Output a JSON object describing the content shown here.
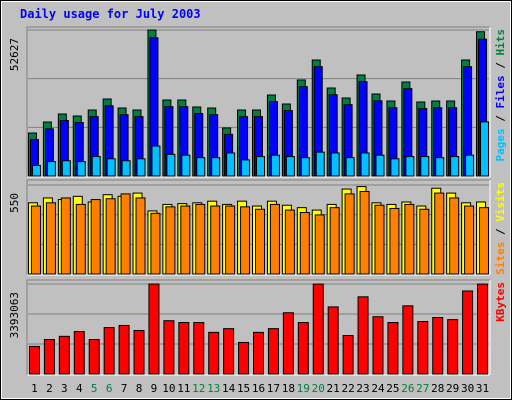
{
  "title": "Daily usage for July 2003",
  "categories": [
    "1",
    "2",
    "3",
    "4",
    "5",
    "6",
    "7",
    "8",
    "9",
    "10",
    "11",
    "12",
    "13",
    "14",
    "15",
    "16",
    "17",
    "18",
    "19",
    "20",
    "21",
    "22",
    "23",
    "24",
    "25",
    "26",
    "27",
    "28",
    "29",
    "30",
    "31"
  ],
  "category_colors": [
    "#000000",
    "#000000",
    "#000000",
    "#000000",
    "#008040",
    "#008040",
    "#000000",
    "#000000",
    "#000000",
    "#000000",
    "#000000",
    "#008040",
    "#008040",
    "#000000",
    "#000000",
    "#000000",
    "#000000",
    "#000000",
    "#008040",
    "#008040",
    "#000000",
    "#000000",
    "#000000",
    "#000000",
    "#000000",
    "#008040",
    "#008040",
    "#000000",
    "#000000",
    "#000000",
    "#000000"
  ],
  "chart_data": [
    {
      "type": "bar",
      "ylim": [
        0,
        52627
      ],
      "yticks": [
        52627
      ],
      "series": [
        {
          "name": "Hits",
          "color": "#008040",
          "values": [
            15500,
            19465,
            22349,
            21628,
            23790,
            27755,
            24511,
            23790,
            52627,
            27395,
            27395,
            24872,
            24511,
            17302,
            23790,
            23790,
            29197,
            25953,
            34604,
            41813,
            31720,
            28116,
            36406,
            29557,
            27034,
            33883,
            26674,
            27034,
            27034,
            41813,
            52000
          ]
        },
        {
          "name": "Files",
          "color": "#0000ff",
          "values": [
            13100,
            17000,
            20000,
            19300,
            21400,
            25300,
            22100,
            21400,
            49800,
            25000,
            25000,
            22500,
            22100,
            15000,
            21400,
            21400,
            26800,
            23600,
            32200,
            39400,
            29300,
            25700,
            34000,
            27100,
            24600,
            31500,
            24300,
            24600,
            24600,
            39400,
            49300
          ]
        },
        {
          "name": "Pages",
          "color": "#00c0ff",
          "values": [
            3800,
            5200,
            5500,
            5200,
            7000,
            6200,
            5500,
            6200,
            10800,
            7800,
            7500,
            6600,
            6600,
            8300,
            5800,
            7000,
            7500,
            7000,
            6600,
            8600,
            8300,
            6600,
            8300,
            7500,
            6200,
            7000,
            7000,
            6600,
            7000,
            7500,
            19500
          ]
        }
      ]
    },
    {
      "type": "bar",
      "ylim": [
        0,
        550
      ],
      "yticks": [
        550
      ],
      "series": [
        {
          "name": "Visits",
          "color": "#ffff00",
          "values": [
            440,
            470,
            460,
            480,
            445,
            490,
            480,
            500,
            390,
            430,
            435,
            440,
            450,
            430,
            450,
            420,
            450,
            425,
            410,
            395,
            430,
            525,
            540,
            440,
            430,
            445,
            420,
            530,
            500,
            440,
            445
          ]
        },
        {
          "name": "Sites",
          "color": "#ff8000",
          "values": [
            420,
            440,
            470,
            430,
            460,
            465,
            495,
            470,
            375,
            415,
            420,
            430,
            420,
            420,
            415,
            400,
            430,
            395,
            380,
            365,
            410,
            495,
            510,
            425,
            405,
            430,
            400,
            500,
            470,
            420,
            410
          ]
        }
      ]
    },
    {
      "type": "bar",
      "ylim": [
        0,
        3393063
      ],
      "yticks": [
        3393063
      ],
      "series": [
        {
          "name": "KBytes",
          "color": "#ff0000",
          "values": [
            1040000,
            1300000,
            1420000,
            1600000,
            1300000,
            1750000,
            1830000,
            1640000,
            3393063,
            2010000,
            1940000,
            1940000,
            1570000,
            1710000,
            1190000,
            1570000,
            1710000,
            2310000,
            1940000,
            3390000,
            2530000,
            1450000,
            2910000,
            2160000,
            1940000,
            2570000,
            1980000,
            2130000,
            2050000,
            3130000,
            3390000
          ]
        }
      ]
    }
  ]
}
